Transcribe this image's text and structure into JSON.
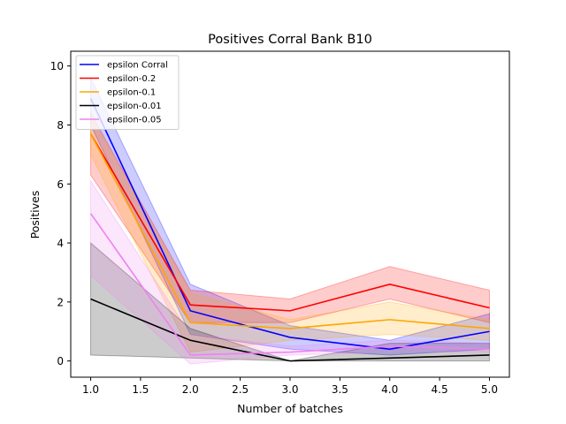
{
  "chart_data": {
    "type": "line",
    "title": "Positives Corral Bank B10",
    "xlabel": "Number of batches",
    "ylabel": "Positives",
    "xlim": [
      0.8,
      5.2
    ],
    "ylim": [
      -0.55,
      10.5
    ],
    "x": [
      1,
      2,
      3,
      4,
      5
    ],
    "xticks": [
      1.0,
      1.5,
      2.0,
      2.5,
      3.0,
      3.5,
      4.0,
      4.5,
      5.0
    ],
    "xtick_labels": [
      "1.0",
      "1.5",
      "2.0",
      "2.5",
      "3.0",
      "3.5",
      "4.0",
      "4.5",
      "5.0"
    ],
    "yticks": [
      0,
      2,
      4,
      6,
      8,
      10
    ],
    "ytick_labels": [
      "0",
      "2",
      "4",
      "6",
      "8",
      "10"
    ],
    "grid": false,
    "legend_position": "top-left",
    "series": [
      {
        "name": "epsilon Corral",
        "color": "#0000ff",
        "values": [
          8.9,
          1.7,
          0.8,
          0.4,
          1.0
        ],
        "lower": [
          8.0,
          0.9,
          0.4,
          0.2,
          0.4
        ],
        "upper": [
          9.6,
          2.6,
          1.2,
          0.7,
          1.6
        ]
      },
      {
        "name": "epsilon-0.2",
        "color": "#ff0000",
        "values": [
          7.7,
          1.9,
          1.7,
          2.6,
          1.8
        ],
        "lower": [
          6.3,
          1.3,
          1.3,
          2.1,
          1.3
        ],
        "upper": [
          8.4,
          2.4,
          2.1,
          3.2,
          2.4
        ]
      },
      {
        "name": "epsilon-0.1",
        "color": "#ffa500",
        "values": [
          7.7,
          1.3,
          1.1,
          1.4,
          1.1
        ],
        "lower": [
          7.0,
          0.3,
          0.7,
          0.9,
          0.7
        ],
        "upper": [
          8.3,
          2.3,
          1.4,
          2.0,
          1.4
        ]
      },
      {
        "name": "epsilon-0.01",
        "color": "#000000",
        "values": [
          2.1,
          0.7,
          0.0,
          0.1,
          0.2
        ],
        "lower": [
          0.2,
          0.1,
          0.0,
          0.0,
          0.0
        ],
        "upper": [
          4.0,
          1.1,
          0.0,
          0.6,
          0.6
        ]
      },
      {
        "name": "epsilon-0.05",
        "color": "#ee82ee",
        "values": [
          5.0,
          0.2,
          0.3,
          0.5,
          0.4
        ],
        "lower": [
          2.9,
          -0.1,
          0.2,
          0.3,
          0.3
        ],
        "upper": [
          6.1,
          0.9,
          0.5,
          0.7,
          0.6
        ]
      }
    ]
  }
}
